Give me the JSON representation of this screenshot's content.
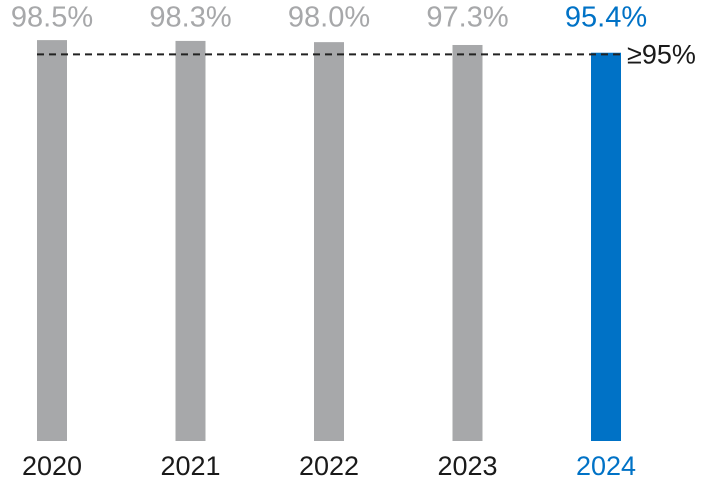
{
  "chart_data": {
    "type": "bar",
    "categories": [
      "2020",
      "2021",
      "2022",
      "2023",
      "2024"
    ],
    "values": [
      98.5,
      98.3,
      98.0,
      97.3,
      95.4
    ],
    "value_labels": [
      "98.5%",
      "98.3%",
      "98.0%",
      "97.3%",
      "95.4%"
    ],
    "colors": [
      "#a7a8aa",
      "#a7a8aa",
      "#a7a8aa",
      "#a7a8aa",
      "#0072c6"
    ],
    "ylim": [
      0,
      100
    ],
    "target": {
      "value": 95,
      "label": "≥95%"
    }
  }
}
